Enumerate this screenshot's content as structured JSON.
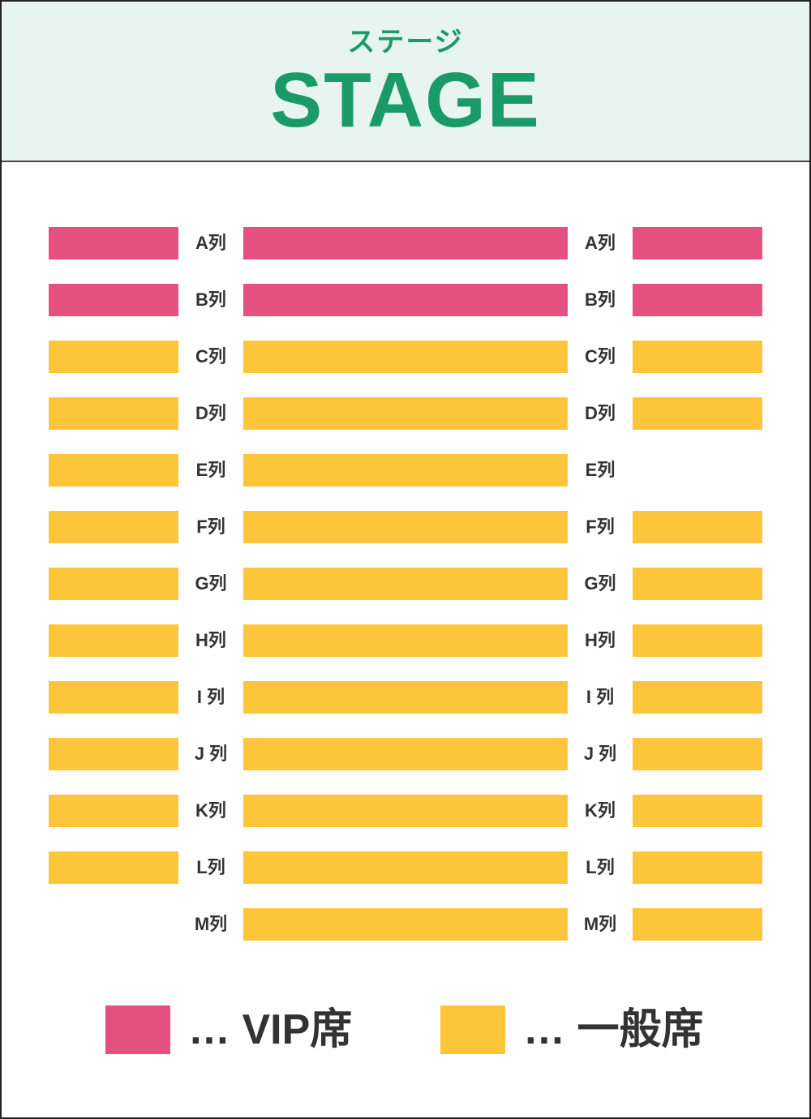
{
  "stage": {
    "kana": "ステージ",
    "title": "STAGE"
  },
  "colors": {
    "vip": "#e4507f",
    "general": "#fdc63a",
    "stage_bg": "#e7f4ef",
    "stage_text": "#1a9a68"
  },
  "rows": [
    {
      "label": "A列",
      "left": "vip",
      "center": "vip",
      "right": "vip"
    },
    {
      "label": "B列",
      "left": "vip",
      "center": "vip",
      "right": "vip"
    },
    {
      "label": "C列",
      "left": "general",
      "center": "general",
      "right": "general"
    },
    {
      "label": "D列",
      "left": "general",
      "center": "general",
      "right": "general"
    },
    {
      "label": "E列",
      "left": "general",
      "center": "general",
      "right": null
    },
    {
      "label": "F列",
      "left": "general",
      "center": "general",
      "right": "general"
    },
    {
      "label": "G列",
      "left": "general",
      "center": "general",
      "right": "general"
    },
    {
      "label": "H列",
      "left": "general",
      "center": "general",
      "right": "general"
    },
    {
      "label": "I 列",
      "left": "general",
      "center": "general",
      "right": "general"
    },
    {
      "label": "J 列",
      "left": "general",
      "center": "general",
      "right": "general"
    },
    {
      "label": "K列",
      "left": "general",
      "center": "general",
      "right": "general"
    },
    {
      "label": "L列",
      "left": "general",
      "center": "general",
      "right": "general"
    },
    {
      "label": "M列",
      "left": null,
      "center": "general",
      "right": "general"
    }
  ],
  "legend": {
    "vip_label": "… VIP席",
    "general_label": "… 一般席"
  }
}
